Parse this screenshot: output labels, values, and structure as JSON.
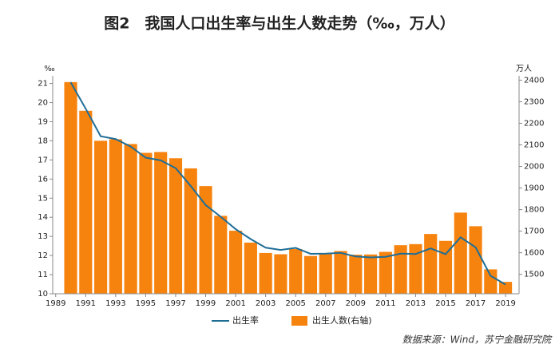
{
  "chart_data": {
    "type": "combo",
    "title": "图2　我国人口出生率与出生人数走势（‰，万人）",
    "y_unit": "‰",
    "y2_unit": "万人",
    "source": "数据来源：Wind，苏宁金融研究院",
    "x": [
      1990,
      1991,
      1992,
      1993,
      1994,
      1995,
      1996,
      1997,
      1998,
      1999,
      2000,
      2001,
      2002,
      2003,
      2004,
      2005,
      2006,
      2007,
      2008,
      2009,
      2010,
      2011,
      2012,
      2013,
      2014,
      2015,
      2016,
      2017,
      2018,
      2019
    ],
    "xlim": [
      1988.8,
      2019.9
    ],
    "xticks": [
      1989,
      1991,
      1993,
      1995,
      1997,
      1999,
      2001,
      2003,
      2005,
      2007,
      2009,
      2011,
      2013,
      2015,
      2017,
      2019
    ],
    "ylim": [
      10,
      21.4
    ],
    "yticks": [
      10,
      11,
      12,
      13,
      14,
      15,
      16,
      17,
      18,
      19,
      20,
      21
    ],
    "y2lim": [
      1410,
      2420
    ],
    "y2ticks": [
      1500,
      1600,
      1700,
      1800,
      1900,
      2000,
      2100,
      2200,
      2300,
      2400
    ],
    "series": [
      {
        "name": "出生率",
        "type": "line",
        "color": "#1f6e96",
        "values": [
          21.06,
          19.68,
          18.24,
          18.09,
          17.7,
          17.12,
          16.98,
          16.57,
          15.64,
          14.64,
          14.03,
          13.38,
          12.86,
          12.41,
          12.29,
          12.4,
          12.09,
          12.1,
          12.14,
          11.95,
          11.9,
          11.93,
          12.1,
          12.08,
          12.37,
          12.07,
          12.95,
          12.43,
          10.94,
          10.48
        ]
      },
      {
        "name": "出生人数(右轴)",
        "type": "bar",
        "axis": "y2",
        "color": "#f7830f",
        "values": [
          2391,
          2258,
          2119,
          2126,
          2104,
          2063,
          2067,
          2038,
          1991,
          1909,
          1771,
          1702,
          1647,
          1599,
          1593,
          1617,
          1585,
          1594,
          1608,
          1591,
          1592,
          1604,
          1635,
          1640,
          1687,
          1655,
          1786,
          1723,
          1523,
          1465
        ]
      }
    ]
  }
}
